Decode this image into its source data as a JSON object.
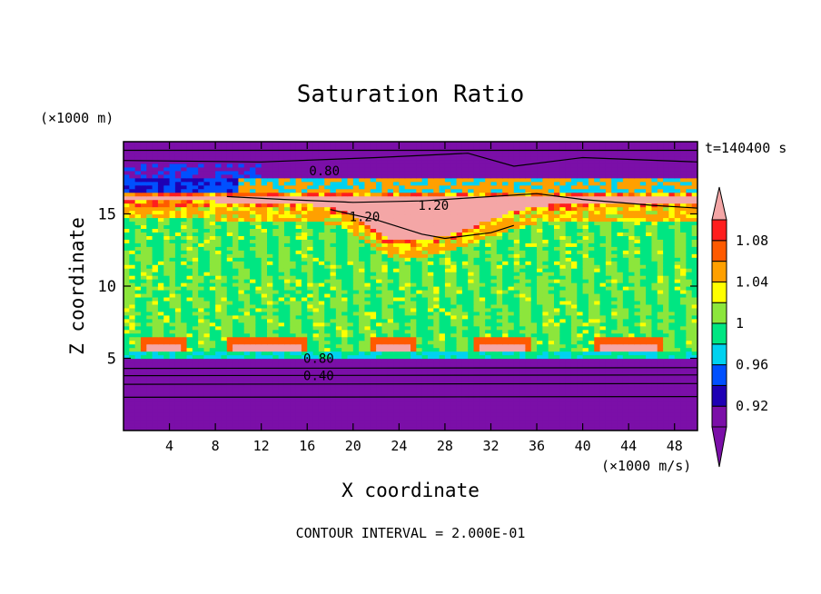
{
  "chart_data": {
    "type": "heatmap",
    "title": "Saturation Ratio",
    "xlabel": "X coordinate",
    "ylabel": "Z coordinate",
    "x_unit": "(×1000 m/s)",
    "y_unit": "(×1000 m)",
    "time_label": "t=140400 s",
    "footer": "CONTOUR INTERVAL = 2.000E-01",
    "xlim": [
      0,
      50
    ],
    "ylim": [
      0,
      20
    ],
    "x_ticks": [
      4,
      8,
      12,
      16,
      20,
      24,
      28,
      32,
      36,
      40,
      44,
      48
    ],
    "y_ticks": [
      5,
      10,
      15
    ],
    "contour_labels": [
      {
        "text": "0.80",
        "x": 17.5,
        "z": 18.0
      },
      {
        "text": "1.20",
        "x": 27.0,
        "z": 15.6
      },
      {
        "text": "1.20",
        "x": 21.0,
        "z": 14.8
      },
      {
        "text": "0.80",
        "x": 17.0,
        "z": 5.0
      },
      {
        "text": "0.40",
        "x": 17.0,
        "z": 3.8
      }
    ],
    "colorbar": {
      "levels": [
        0.92,
        0.96,
        1,
        1.04,
        1.08
      ],
      "tick_labels": [
        "0.92",
        "0.96",
        "1",
        "1.04",
        "1.08"
      ],
      "bins": [
        {
          "min": 0.9,
          "color": "#7b0fa8"
        },
        {
          "min": 0.92,
          "color": "#1e00b4"
        },
        {
          "min": 0.94,
          "color": "#0050ff"
        },
        {
          "min": 0.96,
          "color": "#00d2f0"
        },
        {
          "min": 0.98,
          "color": "#00e682"
        },
        {
          "min": 1.0,
          "color": "#8ce63c"
        },
        {
          "min": 1.02,
          "color": "#ffff00"
        },
        {
          "min": 1.04,
          "color": "#ffa000"
        },
        {
          "min": 1.06,
          "color": "#ff5a00"
        },
        {
          "min": 1.08,
          "color": "#ff1e1e"
        }
      ],
      "under_color": "#7b0fa8",
      "over_color": "#f4a6a6"
    },
    "field_description": [
      {
        "region": "z 0-5",
        "value_range": "<0.90"
      },
      {
        "region": "z 5-15",
        "value_range": "0.98-1.02"
      },
      {
        "region": "z 15-17.5",
        "value_range": ">1.10"
      },
      {
        "region": "z 17.5-20",
        "value_range": "<0.90"
      }
    ]
  }
}
